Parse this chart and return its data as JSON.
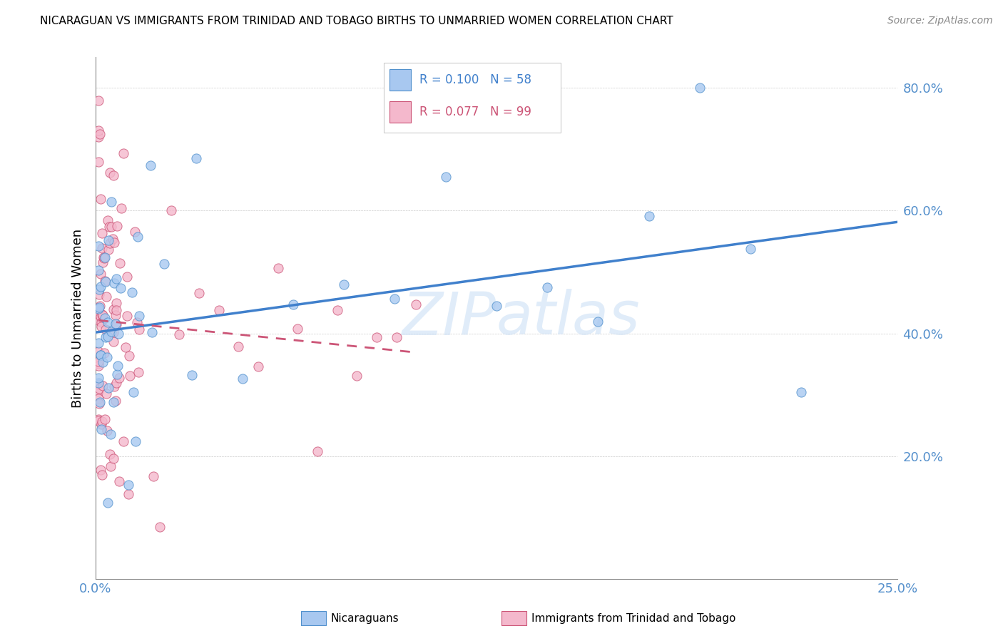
{
  "title": "NICARAGUAN VS IMMIGRANTS FROM TRINIDAD AND TOBAGO BIRTHS TO UNMARRIED WOMEN CORRELATION CHART",
  "source": "Source: ZipAtlas.com",
  "ylabel": "Births to Unmarried Women",
  "xlim": [
    0.0,
    0.25
  ],
  "ylim": [
    0.0,
    0.85
  ],
  "xtick_positions": [
    0.0,
    0.05,
    0.1,
    0.15,
    0.2,
    0.25
  ],
  "xticklabels": [
    "0.0%",
    "",
    "",
    "",
    "",
    "25.0%"
  ],
  "ytick_positions": [
    0.0,
    0.2,
    0.4,
    0.6,
    0.8
  ],
  "yticklabels": [
    "",
    "20.0%",
    "40.0%",
    "60.0%",
    "80.0%"
  ],
  "legend_labels": [
    "Nicaraguans",
    "Immigrants from Trinidad and Tobago"
  ],
  "r_nicaraguan": 0.1,
  "n_nicaraguan": 58,
  "r_trinidad": 0.077,
  "n_trinidad": 99,
  "color_nicaraguan": "#a8c8f0",
  "color_trinidad": "#f4b8cc",
  "edge_color_nicaraguan": "#5090cc",
  "edge_color_trinidad": "#cc5577",
  "line_color_nicaraguan": "#4080cc",
  "line_color_trinidad": "#cc5577",
  "tick_color": "#5590cc",
  "watermark": "ZIPatlas",
  "title_fontsize": 11,
  "axis_fontsize": 13,
  "source_fontsize": 10
}
